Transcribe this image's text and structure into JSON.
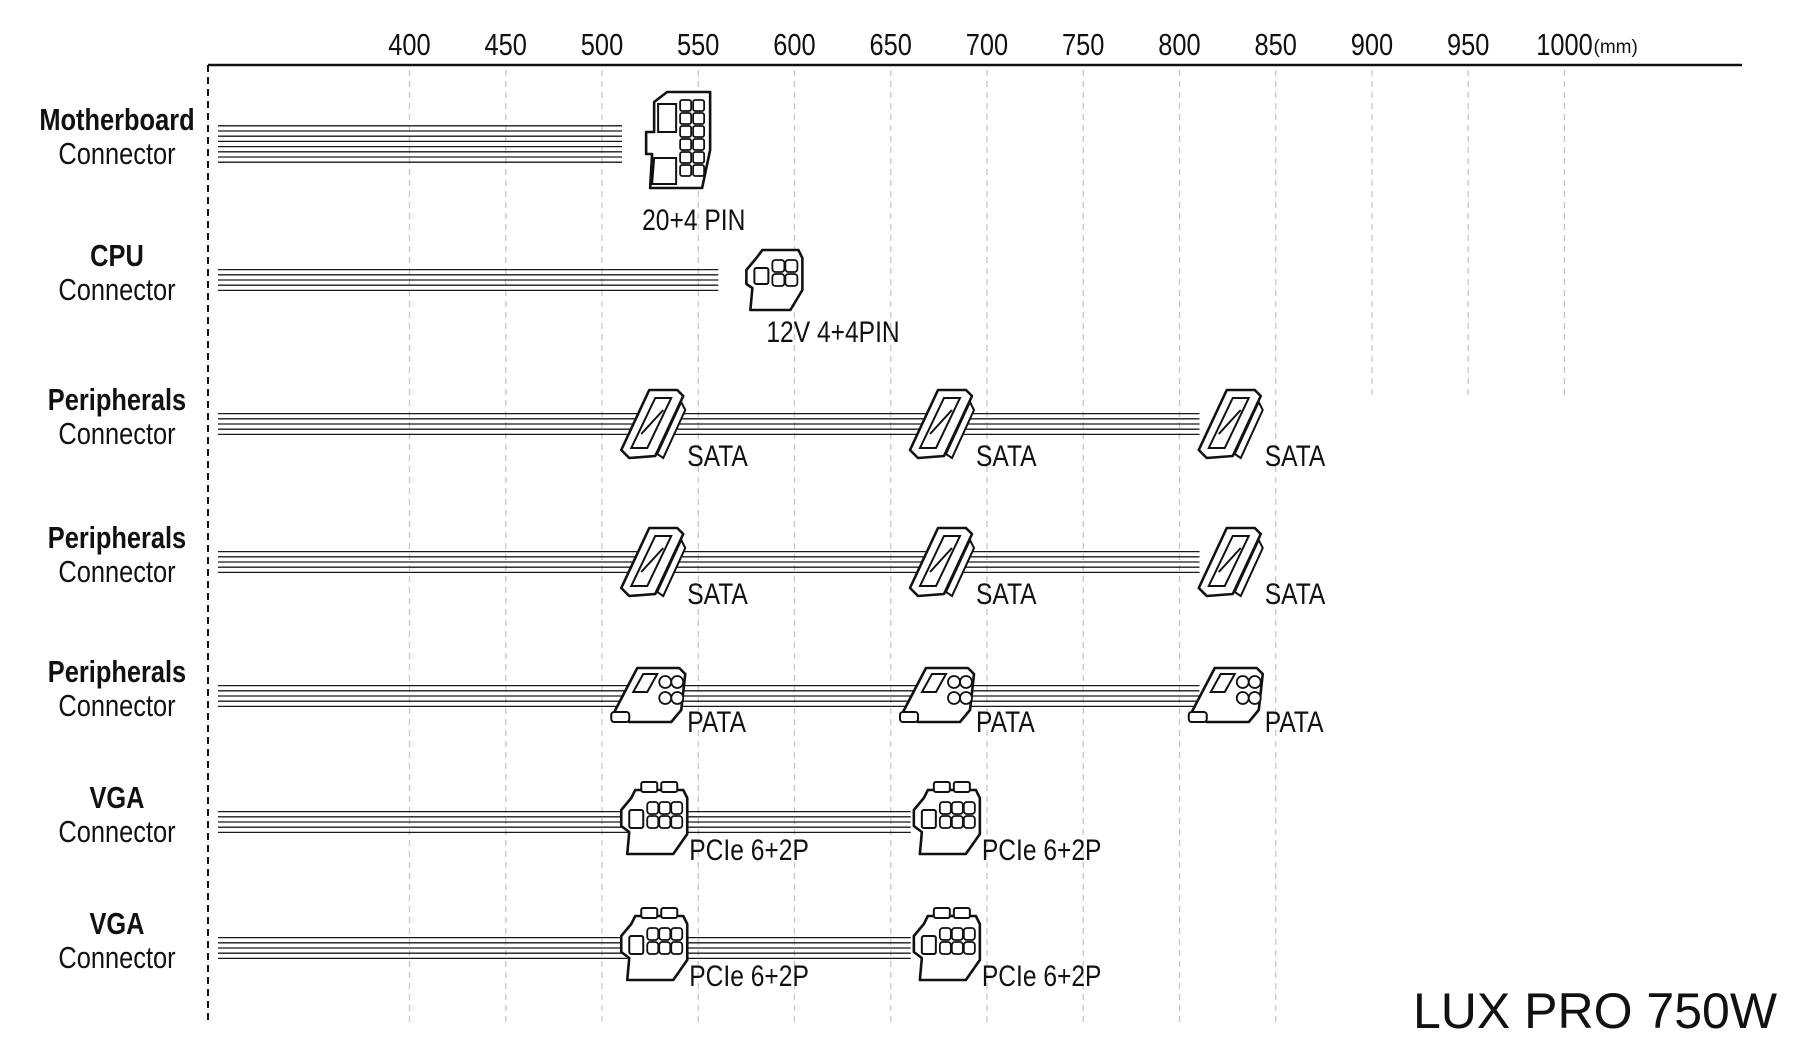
{
  "axis": {
    "ticks": [
      "400",
      "450",
      "500",
      "550",
      "600",
      "650",
      "700",
      "750",
      "800",
      "850",
      "900",
      "950",
      "1000"
    ],
    "unit": "(mm)"
  },
  "rows": [
    {
      "title": "Motherboard",
      "subtitle": "Connector",
      "wire_end_mm": 500,
      "connectors": [
        {
          "type": "atx24",
          "label": "20+4 PIN",
          "at_mm": 525
        }
      ]
    },
    {
      "title": "CPU",
      "subtitle": "Connector",
      "wire_end_mm": 550,
      "connectors": [
        {
          "type": "eps8",
          "label": "12V 4+4PIN",
          "at_mm": 575
        }
      ]
    },
    {
      "title": "Peripherals",
      "subtitle": "Connector",
      "wire_end_mm": 800,
      "connectors": [
        {
          "type": "sata",
          "label": "SATA",
          "at_mm": 510
        },
        {
          "type": "sata",
          "label": "SATA",
          "at_mm": 660
        },
        {
          "type": "sata",
          "label": "SATA",
          "at_mm": 810
        }
      ]
    },
    {
      "title": "Peripherals",
      "subtitle": "Connector",
      "wire_end_mm": 800,
      "connectors": [
        {
          "type": "sata",
          "label": "SATA",
          "at_mm": 510
        },
        {
          "type": "sata",
          "label": "SATA",
          "at_mm": 660
        },
        {
          "type": "sata",
          "label": "SATA",
          "at_mm": 810
        }
      ]
    },
    {
      "title": "Peripherals",
      "subtitle": "Connector",
      "wire_end_mm": 800,
      "connectors": [
        {
          "type": "pata",
          "label": "PATA",
          "at_mm": 510
        },
        {
          "type": "pata",
          "label": "PATA",
          "at_mm": 660
        },
        {
          "type": "pata",
          "label": "PATA",
          "at_mm": 810
        }
      ]
    },
    {
      "title": "VGA",
      "subtitle": "Connector",
      "wire_end_mm": 650,
      "connectors": [
        {
          "type": "pcie",
          "label": "PCIe 6+2P",
          "at_mm": 510
        },
        {
          "type": "pcie",
          "label": "PCIe 6+2P",
          "at_mm": 662
        }
      ]
    },
    {
      "title": "VGA",
      "subtitle": "Connector",
      "wire_end_mm": 650,
      "connectors": [
        {
          "type": "pcie",
          "label": "PCIe 6+2P",
          "at_mm": 510
        },
        {
          "type": "pcie",
          "label": "PCIe 6+2P",
          "at_mm": 662
        }
      ]
    }
  ],
  "model": "LUX PRO 750W"
}
